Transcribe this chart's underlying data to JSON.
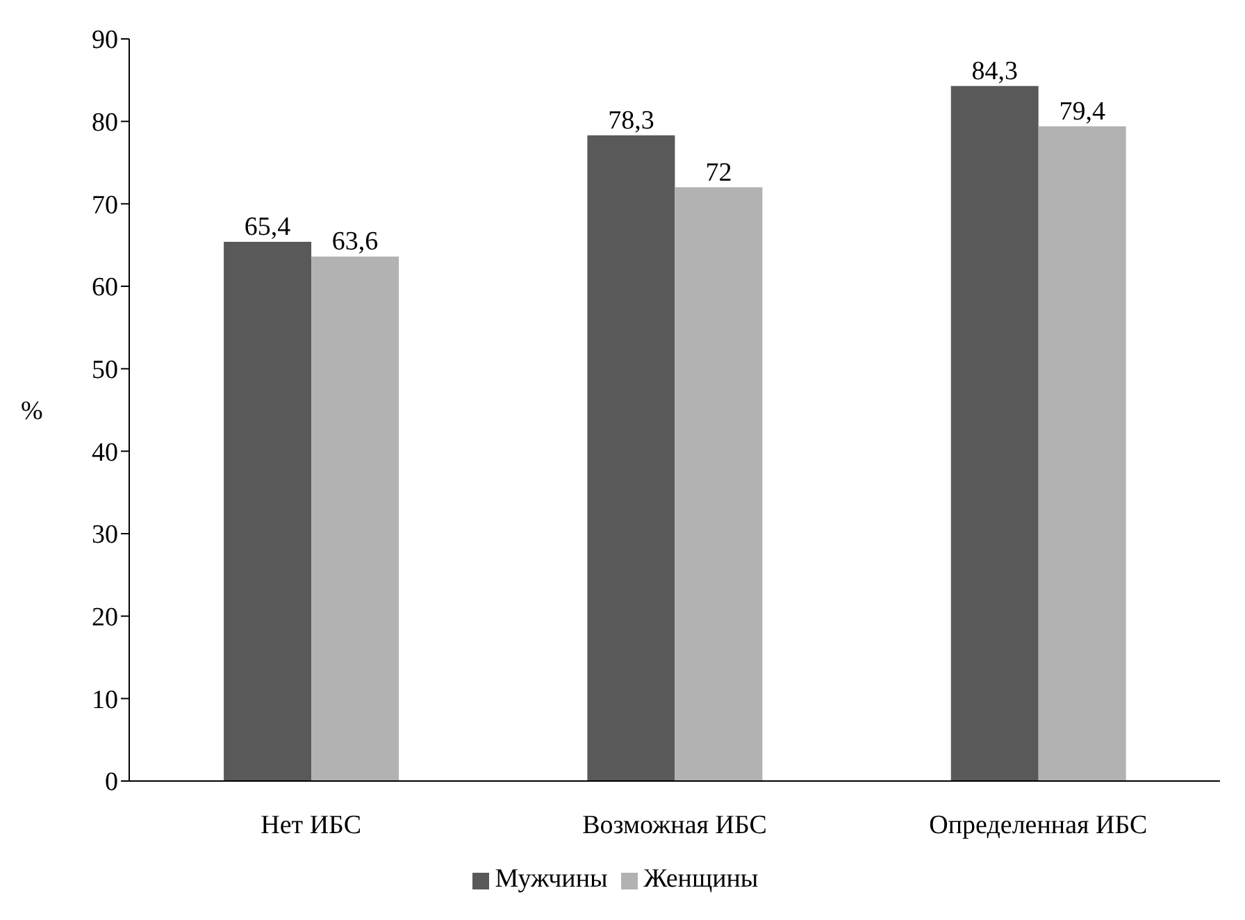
{
  "chart_data": {
    "type": "bar",
    "ylabel": "%",
    "categories": [
      "Нет ИБС",
      "Возможная ИБС",
      "Определенная ИБС"
    ],
    "series": [
      {
        "name": "Мужчины",
        "color": "#595959",
        "values": [
          65.4,
          78.3,
          84.3
        ],
        "value_labels": [
          "65,4",
          "78,3",
          "84,3"
        ]
      },
      {
        "name": "Женщины",
        "color": "#b2b2b2",
        "values": [
          63.6,
          72,
          79.4
        ],
        "value_labels": [
          "63,6",
          "72",
          "79,4"
        ]
      }
    ],
    "ylim": [
      0,
      90
    ],
    "yticks": [
      0,
      10,
      20,
      30,
      40,
      50,
      60,
      70,
      80,
      90
    ],
    "grid": false,
    "legend": "bottom"
  }
}
